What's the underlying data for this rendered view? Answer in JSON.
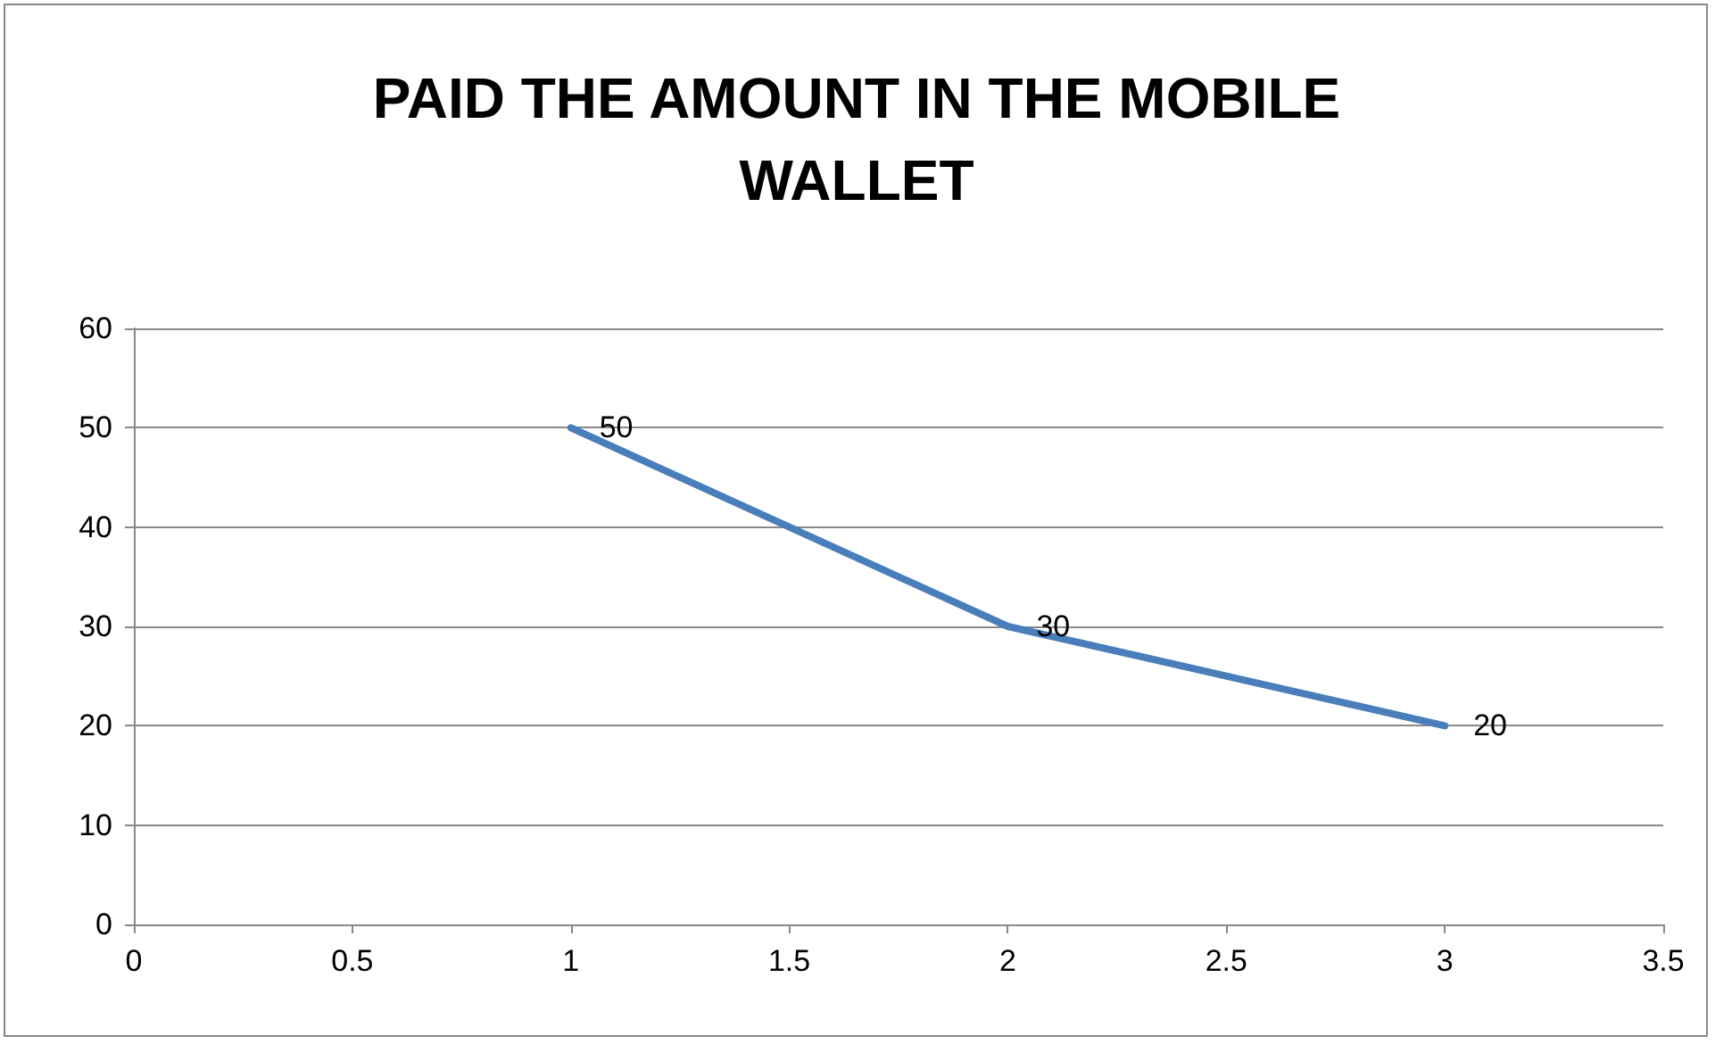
{
  "chart_data": {
    "type": "line",
    "title": "PAID THE AMOUNT IN THE MOBILE WALLET",
    "x": [
      1,
      2,
      3
    ],
    "series": [
      {
        "color": "#4a7ebb",
        "values": [
          50,
          30,
          20
        ]
      }
    ],
    "xlim": [
      0,
      3.5
    ],
    "xticks": [
      0,
      0.5,
      1,
      1.5,
      2,
      2.5,
      3,
      3.5
    ],
    "ylim": [
      0,
      60
    ],
    "yticks": [
      0,
      10,
      20,
      30,
      40,
      50,
      60
    ],
    "grid": "y",
    "marker": "none",
    "line_style": "solid",
    "data_labels": true
  }
}
